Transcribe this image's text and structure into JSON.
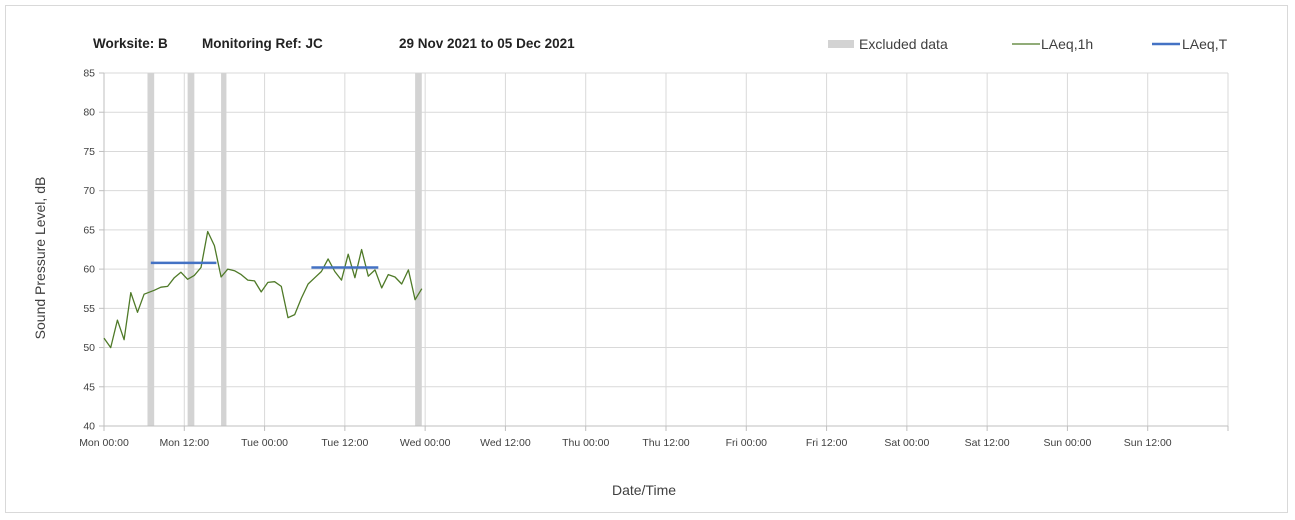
{
  "chart_data": {
    "type": "line",
    "title_parts": {
      "worksite": "Worksite: B",
      "ref": "Monitoring Ref: JC",
      "period": "29 Nov 2021 to 05 Dec 2021"
    },
    "xlabel": "Date/Time",
    "ylabel": "Sound Pressure Level, dB",
    "ylim": [
      40,
      85
    ],
    "yticks": [
      40,
      45,
      50,
      55,
      60,
      65,
      70,
      75,
      80,
      85
    ],
    "xlim_hours": [
      0,
      168
    ],
    "xtick_labels": [
      "Mon 00:00",
      "Mon 12:00",
      "Tue 00:00",
      "Tue 12:00",
      "Wed 00:00",
      "Wed 12:00",
      "Thu 00:00",
      "Thu 12:00",
      "Fri 00:00",
      "Fri 12:00",
      "Sat 00:00",
      "Sat 12:00",
      "Sun 00:00",
      "Sun 12:00"
    ],
    "grid": "vertical and horizontal",
    "legend_position": "top-right",
    "legend": [
      {
        "label": "Excluded data",
        "kind": "band",
        "color": "#d3d3d3"
      },
      {
        "label": "LAeq,1h",
        "kind": "line",
        "color": "#4f7a28"
      },
      {
        "label": "LAeq,T",
        "kind": "line",
        "color": "#4472c4"
      }
    ],
    "excluded_periods_hours": [
      [
        6.5,
        7.5
      ],
      [
        12.5,
        13.5
      ],
      [
        17.5,
        18.3
      ],
      [
        46.5,
        47.5
      ]
    ],
    "series": [
      {
        "name": "LAeq,1h",
        "color": "#4f7a28",
        "points": [
          [
            0,
            51.2
          ],
          [
            1,
            50
          ],
          [
            2,
            53.5
          ],
          [
            3,
            51
          ],
          [
            4,
            57
          ],
          [
            5,
            54.5
          ],
          [
            6,
            56.8
          ],
          [
            7.5,
            57.3
          ],
          [
            8.5,
            57.7
          ],
          [
            9.5,
            57.8
          ],
          [
            10.5,
            58.9
          ],
          [
            11.5,
            59.6
          ],
          [
            12.5,
            58.7
          ],
          [
            13.5,
            59.2
          ],
          [
            14.5,
            60.2
          ],
          [
            15.5,
            64.8
          ],
          [
            16.5,
            63
          ],
          [
            17.5,
            59
          ],
          [
            18.5,
            60
          ],
          [
            19.5,
            59.8
          ],
          [
            20.5,
            59.3
          ],
          [
            21.5,
            58.6
          ],
          [
            22.5,
            58.5
          ],
          [
            23.5,
            57.1
          ],
          [
            24.5,
            58.3
          ],
          [
            25.5,
            58.4
          ],
          [
            26.5,
            57.8
          ],
          [
            27.5,
            53.8
          ],
          [
            28.5,
            54.2
          ],
          [
            29.5,
            56.3
          ],
          [
            30.5,
            58.1
          ],
          [
            31.5,
            58.9
          ],
          [
            32.5,
            59.7
          ],
          [
            33.5,
            61.3
          ],
          [
            34.5,
            59.7
          ],
          [
            35.5,
            58.6
          ],
          [
            36.5,
            61.9
          ],
          [
            37.5,
            58.9
          ],
          [
            38.5,
            62.5
          ],
          [
            39.5,
            59.1
          ],
          [
            40.5,
            59.9
          ],
          [
            41.5,
            57.6
          ],
          [
            42.5,
            59.3
          ],
          [
            43.5,
            59
          ],
          [
            44.5,
            58.1
          ],
          [
            45.5,
            59.9
          ],
          [
            46.5,
            56.1
          ],
          [
            47.5,
            57.5
          ]
        ]
      },
      {
        "name": "LAeq,T",
        "color": "#4472c4",
        "segments": [
          {
            "x": [
              7,
              16.8
            ],
            "y": 60.8
          },
          {
            "x": [
              31,
              41
            ],
            "y": 60.2
          }
        ]
      }
    ]
  }
}
